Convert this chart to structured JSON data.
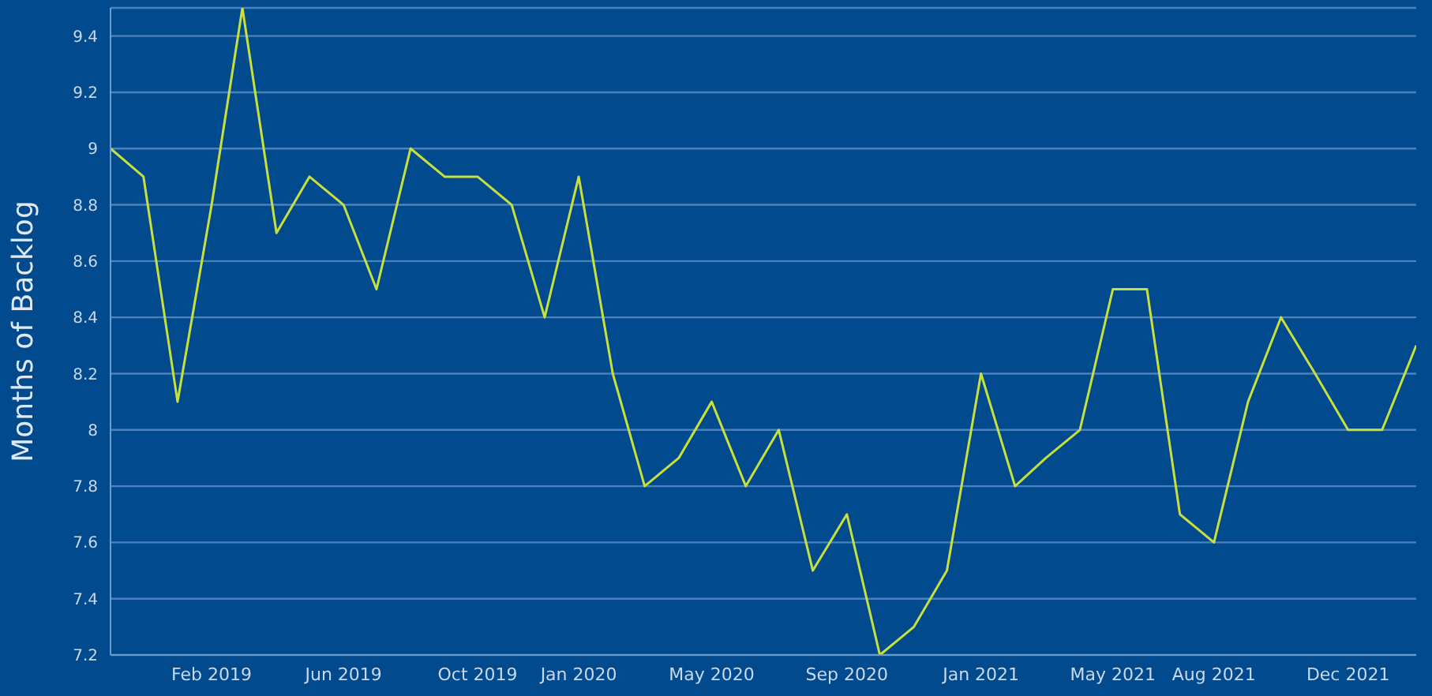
{
  "chart_data": {
    "type": "line",
    "ylabel": "Months of Backlog",
    "x": [
      "2018-11",
      "2018-12",
      "2019-01",
      "2019-02",
      "2019-03",
      "2019-04",
      "2019-05",
      "2019-06",
      "2019-07",
      "2019-08",
      "2019-09",
      "2019-10",
      "2019-11",
      "2019-12",
      "2020-01",
      "2020-02",
      "2020-03",
      "2020-04",
      "2020-05",
      "2020-06",
      "2020-07",
      "2020-08",
      "2020-09",
      "2020-10",
      "2020-11",
      "2020-12",
      "2021-01",
      "2021-02",
      "2021-03",
      "2021-04",
      "2021-05",
      "2021-06",
      "2021-07",
      "2021-08",
      "2021-09",
      "2021-10",
      "2021-11",
      "2021-12",
      "2022-01",
      "2022-02"
    ],
    "series": [
      {
        "color": "#c8e03c",
        "values": [
          9.0,
          8.9,
          8.1,
          8.8,
          9.5,
          8.7,
          8.9,
          8.8,
          8.5,
          9.0,
          8.9,
          8.9,
          8.8,
          8.4,
          8.9,
          8.2,
          7.8,
          7.9,
          8.1,
          7.8,
          8.0,
          7.5,
          7.7,
          7.2,
          7.3,
          7.5,
          8.2,
          7.8,
          7.9,
          8.0,
          8.5,
          8.5,
          7.7,
          7.6,
          8.1,
          8.4,
          8.2,
          8.0,
          8.0,
          8.3
        ]
      }
    ],
    "xlim": [
      "2018-11",
      "2022-02"
    ],
    "xticks": [
      {
        "value": "2019-02",
        "label": "Feb 2019"
      },
      {
        "value": "2019-06",
        "label": "Jun 2019"
      },
      {
        "value": "2019-10",
        "label": "Oct 2019"
      },
      {
        "value": "2020-01",
        "label": "Jan 2020"
      },
      {
        "value": "2020-05",
        "label": "May 2020"
      },
      {
        "value": "2020-09",
        "label": "Sep 2020"
      },
      {
        "value": "2021-01",
        "label": "Jan 2021"
      },
      {
        "value": "2021-05",
        "label": "May 2021"
      },
      {
        "value": "2021-08",
        "label": "Aug 2021"
      },
      {
        "value": "2021-12",
        "label": "Dec 2021"
      }
    ],
    "ylim": [
      7.2,
      9.5
    ],
    "yticks": [
      7.2,
      7.4,
      7.6,
      7.8,
      8,
      8.2,
      8.4,
      8.6,
      8.8,
      9,
      9.2,
      9.4
    ],
    "grid": "y",
    "legend": false,
    "marker": "none",
    "line_style": "solid"
  }
}
